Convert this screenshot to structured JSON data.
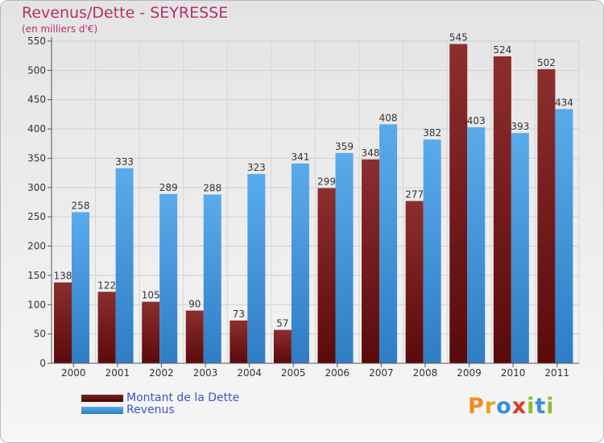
{
  "chart_data": {
    "type": "bar",
    "title": "Revenus/Dette - SEYRESSE",
    "subtitle": "(en milliers d'€)",
    "categories": [
      "2000",
      "2001",
      "2002",
      "2003",
      "2004",
      "2005",
      "2006",
      "2007",
      "2008",
      "2009",
      "2010",
      "2011"
    ],
    "series": [
      {
        "name": "Montant de la Dette",
        "color": "#7b1f1f",
        "values": [
          138,
          122,
          105,
          90,
          73,
          57,
          299,
          348,
          277,
          545,
          524,
          502
        ]
      },
      {
        "name": "Revenus",
        "color": "#3f95d9",
        "values": [
          258,
          333,
          289,
          288,
          323,
          341,
          359,
          408,
          382,
          403,
          393,
          434
        ]
      }
    ],
    "yticks": [
      0,
      50,
      100,
      150,
      200,
      250,
      300,
      350,
      400,
      450,
      500,
      550
    ],
    "ylim": [
      0,
      550
    ],
    "grid": true,
    "legend_position": "bottom-left",
    "data_labels": true
  },
  "logo": {
    "letters": [
      "P",
      "r",
      "o",
      "x",
      "i",
      "t",
      "i"
    ],
    "colors": [
      "#f08c1a",
      "#e8a21c",
      "#3b8fd6",
      "#d83a2a",
      "#8bbf2a",
      "#3b8fd6",
      "#8bbf2a"
    ]
  },
  "colors": {
    "title": "#b5306b",
    "legend_text": "#3a56c8",
    "axis_text": "#333333"
  }
}
